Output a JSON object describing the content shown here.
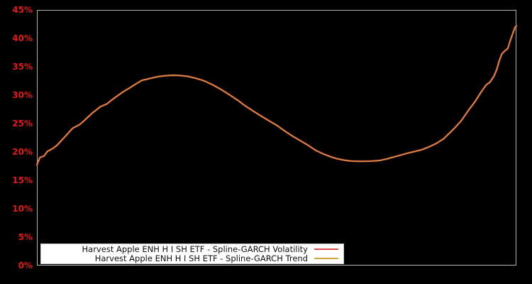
{
  "window": {
    "background": "#000000",
    "plot_border_color": "#b3b3b3",
    "tick_label_color": "#e01b1b",
    "legend_background": "#ffffff"
  },
  "chart_data": {
    "type": "line",
    "title": "",
    "xlabel": "",
    "ylabel": "",
    "x_tick_labels": [],
    "y_ticks": [
      "0%",
      "5%",
      "10%",
      "15%",
      "20%",
      "25%",
      "30%",
      "35%",
      "40%",
      "45%"
    ],
    "ylim": [
      0,
      45
    ],
    "grid": false,
    "legend_position": "bottom-left",
    "plotted_curve_appearance": "#e07a2a",
    "x": [
      0.0,
      0.006,
      0.015,
      0.022,
      0.033,
      0.041,
      0.05,
      0.064,
      0.075,
      0.089,
      0.101,
      0.115,
      0.133,
      0.145,
      0.157,
      0.17,
      0.182,
      0.194,
      0.207,
      0.219,
      0.234,
      0.244,
      0.256,
      0.271,
      0.286,
      0.3,
      0.315,
      0.33,
      0.342,
      0.352,
      0.367,
      0.382,
      0.401,
      0.419,
      0.433,
      0.451,
      0.468,
      0.482,
      0.5,
      0.515,
      0.533,
      0.549,
      0.567,
      0.581,
      0.596,
      0.611,
      0.626,
      0.641,
      0.655,
      0.67,
      0.685,
      0.7,
      0.715,
      0.729,
      0.744,
      0.759,
      0.774,
      0.789,
      0.803,
      0.818,
      0.833,
      0.848,
      0.859,
      0.871,
      0.885,
      0.899,
      0.914,
      0.926,
      0.937,
      0.945,
      0.953,
      0.959,
      0.964,
      0.97,
      0.976,
      0.982,
      0.988,
      0.993,
      0.997,
      1.0
    ],
    "series": [
      {
        "name": "Harvest Apple ENH H I SH ETF - Spline-GARCH Volatility",
        "color": "#dc4b4b",
        "values": [
          17.7,
          19.0,
          19.3,
          20.1,
          20.6,
          21.1,
          21.9,
          23.2,
          24.2,
          24.8,
          25.7,
          26.8,
          28.0,
          28.4,
          29.2,
          30.0,
          30.7,
          31.3,
          32.0,
          32.6,
          32.9,
          33.1,
          33.3,
          33.45,
          33.5,
          33.45,
          33.3,
          33.0,
          32.7,
          32.4,
          31.8,
          31.1,
          30.1,
          29.1,
          28.2,
          27.2,
          26.3,
          25.6,
          24.7,
          23.8,
          22.8,
          22.0,
          21.1,
          20.3,
          19.7,
          19.2,
          18.8,
          18.55,
          18.4,
          18.35,
          18.35,
          18.4,
          18.5,
          18.75,
          19.1,
          19.45,
          19.8,
          20.1,
          20.4,
          20.9,
          21.5,
          22.3,
          23.2,
          24.2,
          25.5,
          27.2,
          28.9,
          30.5,
          31.8,
          32.3,
          33.3,
          34.5,
          36.0,
          37.3,
          37.8,
          38.2,
          39.8,
          41.0,
          41.9,
          42.2
        ]
      },
      {
        "name": "Harvest Apple ENH H I SH ETF - Spline-GARCH Trend",
        "color": "#cfa637",
        "values": [
          17.7,
          19.0,
          19.3,
          20.1,
          20.6,
          21.1,
          21.9,
          23.2,
          24.2,
          24.8,
          25.7,
          26.8,
          28.0,
          28.4,
          29.2,
          30.0,
          30.7,
          31.3,
          32.0,
          32.6,
          32.9,
          33.1,
          33.3,
          33.45,
          33.5,
          33.45,
          33.3,
          33.0,
          32.7,
          32.4,
          31.8,
          31.1,
          30.1,
          29.1,
          28.2,
          27.2,
          26.3,
          25.6,
          24.7,
          23.8,
          22.8,
          22.0,
          21.1,
          20.3,
          19.7,
          19.2,
          18.8,
          18.55,
          18.4,
          18.35,
          18.35,
          18.4,
          18.5,
          18.75,
          19.1,
          19.45,
          19.8,
          20.1,
          20.4,
          20.9,
          21.5,
          22.3,
          23.2,
          24.2,
          25.5,
          27.2,
          28.9,
          30.5,
          31.8,
          32.3,
          33.3,
          34.5,
          36.0,
          37.3,
          37.8,
          38.2,
          39.8,
          41.0,
          41.9,
          42.2
        ]
      }
    ]
  }
}
